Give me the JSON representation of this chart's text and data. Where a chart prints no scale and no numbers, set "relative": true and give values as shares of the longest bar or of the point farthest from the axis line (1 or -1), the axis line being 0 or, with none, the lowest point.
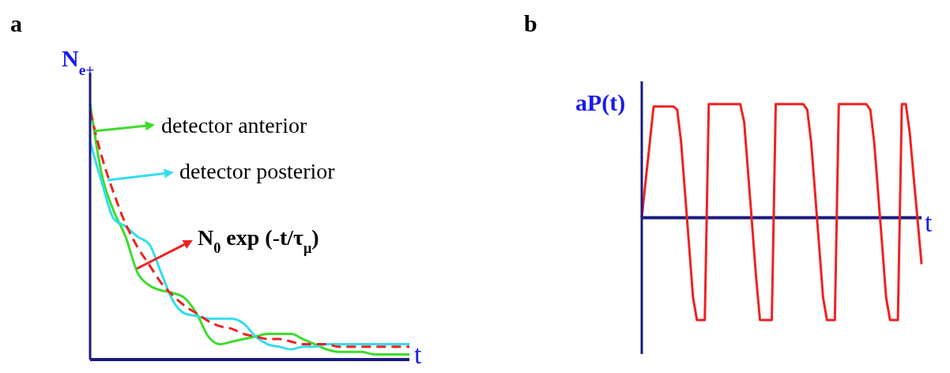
{
  "chart_data": [
    {
      "type": "line",
      "title": "a",
      "xlabel": "t",
      "ylabel": "N$_{e+}$",
      "relative": true,
      "tick_labels": false,
      "categories": [
        null,
        null,
        null,
        null,
        null,
        null,
        null,
        null,
        null,
        null,
        null,
        null,
        null,
        null,
        null,
        null,
        null,
        null,
        null,
        null,
        null,
        null,
        null,
        null,
        null,
        null,
        null,
        null
      ],
      "series": [
        {
          "color": "#3ddc2a",
          "values": [
            1,
            0.72,
            0.58,
            0.48,
            0.34,
            0.29,
            0.27,
            0.26,
            0.24,
            0.18,
            0.09,
            0.06,
            0.07,
            0.08,
            0.09,
            0.1,
            0.1,
            0.1,
            0.08,
            0.06,
            0.04,
            0.03,
            0.03,
            0.03,
            0.02,
            0.02,
            0.02,
            0.02
          ]
        },
        {
          "color": "#33ddee",
          "values": [
            0.85,
            0.69,
            0.55,
            0.52,
            0.48,
            0.45,
            0.34,
            0.23,
            0.18,
            0.17,
            0.16,
            0.16,
            0.16,
            0.14,
            0.09,
            0.06,
            0.05,
            0.04,
            0.05,
            0.05,
            0.06,
            0.06,
            0.06,
            0.06,
            0.06,
            0.06,
            0.06,
            0.06
          ]
        },
        {
          "color": "#ee2222",
          "line_style": "dashed",
          "values": [
            0.97,
            0.79,
            0.65,
            0.53,
            0.44,
            0.37,
            0.3,
            0.25,
            0.21,
            0.18,
            0.15,
            0.13,
            0.12,
            0.1,
            0.09,
            0.08,
            0.08,
            0.07,
            0.06,
            0.06,
            0.06,
            0.05,
            0.05,
            0.05,
            0.05,
            0.05,
            0.05,
            0.05
          ]
        }
      ],
      "annotations": [
        "detector anterior",
        "detector posterior",
        "N$_{0}$ exp (-t/τ$_{μ}$)"
      ]
    },
    {
      "type": "line",
      "title": "b",
      "xlabel": "t",
      "ylabel": "aP(t)",
      "relative": true,
      "tick_labels": false,
      "ref_lines": [
        {
          "axis": "y",
          "value": 0,
          "color": "#1a1a80"
        }
      ],
      "categories": [
        null,
        null,
        null,
        null,
        null,
        null,
        null,
        null,
        null,
        null,
        null,
        null,
        null,
        null,
        null,
        null,
        null,
        null,
        null,
        null,
        null,
        null,
        null,
        null,
        null,
        null,
        null,
        null,
        null,
        null,
        null,
        null,
        null,
        null,
        null,
        null,
        null,
        null,
        null,
        null,
        null,
        null,
        null,
        null,
        null,
        null,
        null,
        null,
        null,
        null,
        null,
        null,
        null,
        null,
        null,
        null,
        null,
        null,
        null,
        null,
        null,
        null,
        null,
        null,
        null,
        null,
        null,
        null,
        null,
        null,
        null,
        null
      ],
      "series": [
        {
          "color": "#ee2222",
          "values": [
            0,
            0.33,
            0.65,
            0.98,
            0.98,
            0.98,
            0.98,
            0.98,
            0.98,
            0.95,
            0.66,
            0.21,
            -0.24,
            -0.7,
            -0.9,
            -0.9,
            -0.9,
            1,
            1,
            1,
            1,
            1,
            1,
            1,
            1,
            1,
            0.84,
            0.39,
            -0.06,
            -0.52,
            -0.9,
            -0.9,
            -0.9,
            -0.9,
            1,
            1,
            1,
            1,
            1,
            1,
            1,
            1,
            0.95,
            0.66,
            0.21,
            -0.24,
            -0.7,
            -0.9,
            -0.9,
            -0.9,
            1,
            1,
            1,
            1,
            1,
            1,
            1,
            1,
            0.95,
            0.66,
            0.21,
            -0.24,
            -0.7,
            -0.9,
            -0.9,
            -0.9,
            1,
            1,
            0.75,
            0.36,
            -0.02,
            -0.41
          ]
        }
      ]
    }
  ]
}
